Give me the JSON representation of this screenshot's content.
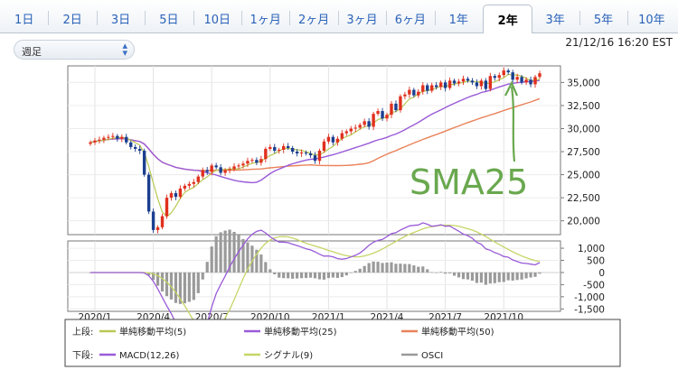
{
  "tabs": [
    {
      "label": "1日",
      "active": false
    },
    {
      "label": "2日",
      "active": false
    },
    {
      "label": "3日",
      "active": false
    },
    {
      "label": "5日",
      "active": false
    },
    {
      "label": "10日",
      "active": false
    },
    {
      "label": "1ヶ月",
      "active": false
    },
    {
      "label": "2ヶ月",
      "active": false
    },
    {
      "label": "3ヶ月",
      "active": false
    },
    {
      "label": "6ヶ月",
      "active": false
    },
    {
      "label": "1年",
      "active": false
    },
    {
      "label": "2年",
      "active": true
    },
    {
      "label": "3年",
      "active": false
    },
    {
      "label": "5年",
      "active": false
    },
    {
      "label": "10年",
      "active": false
    }
  ],
  "period_select": {
    "value": "週足",
    "icon": "up-down-chevron-icon"
  },
  "timestamp": "21/12/16 16:20 EST",
  "annotation": {
    "text": "SMA25",
    "color": "#6aa84f"
  },
  "colors": {
    "up": "#e0301e",
    "down": "#1c3f8f",
    "sma5": "#b9c853",
    "sma25": "#9a5bd8",
    "sma50": "#e9825a",
    "macd": "#9a5bd8",
    "signal": "#c7d566",
    "osci": "#9a9a9a"
  },
  "chart_data": [
    {
      "type": "candlestick",
      "x_tick_labels": [
        "2020/1",
        "2020/4",
        "2020/7",
        "2020/10",
        "2021/1",
        "2021/4",
        "2021/7",
        "2021/10"
      ],
      "y_tick_labels": [
        "35,000",
        "32,500",
        "30,000",
        "27,500",
        "25,000",
        "22,500",
        "20,000"
      ],
      "ylim": [
        18500,
        36800
      ],
      "series_close": [
        28500,
        28700,
        28800,
        29000,
        29100,
        29200,
        28900,
        29100,
        28500,
        28000,
        27800,
        27600,
        25000,
        21000,
        19000,
        19300,
        20500,
        22500,
        23000,
        22600,
        23500,
        23800,
        24000,
        24200,
        24800,
        25500,
        25300,
        26000,
        25800,
        25200,
        25500,
        25600,
        25900,
        26000,
        26200,
        26500,
        26600,
        26300,
        26700,
        27800,
        28000,
        27600,
        27700,
        28100,
        27900,
        27500,
        27300,
        27400,
        27300,
        27100,
        26500,
        27600,
        28600,
        29100,
        28500,
        28900,
        29500,
        29700,
        30000,
        30100,
        30400,
        30800,
        30200,
        31600,
        31900,
        31100,
        31500,
        32700,
        32000,
        33500,
        33700,
        34200,
        33600,
        34000,
        34700,
        34100,
        34700,
        34500,
        35000,
        34400,
        35200,
        34900,
        35100,
        35400,
        35200,
        35000,
        34600,
        35200,
        34300,
        35700,
        35500,
        35800,
        36300,
        36100,
        35300,
        35600,
        35000,
        35300,
        34800,
        35600,
        36000
      ],
      "legend_upper": [
        {
          "prefix": "上段:",
          "name": "単純移動平均(5)",
          "color": "#b9c853"
        },
        {
          "name": "単純移動平均(25)",
          "color": "#9a5bd8"
        },
        {
          "name": "単純移動平均(50)",
          "color": "#e9825a"
        }
      ]
    },
    {
      "type": "macd",
      "y_tick_labels": [
        "1,000",
        "500",
        "0",
        "-500",
        "-1,000",
        "-1,500"
      ],
      "ylim": [
        -1600,
        1300
      ],
      "macd_source": "SMA(12) - SMA(26) of close",
      "legend_lower": [
        {
          "prefix": "下段:",
          "name": "MACD(12,26)",
          "color": "#9a5bd8"
        },
        {
          "name": "シグナル(9)",
          "color": "#c7d566"
        },
        {
          "name": "OSCI",
          "color": "#9a9a9a"
        }
      ]
    }
  ]
}
